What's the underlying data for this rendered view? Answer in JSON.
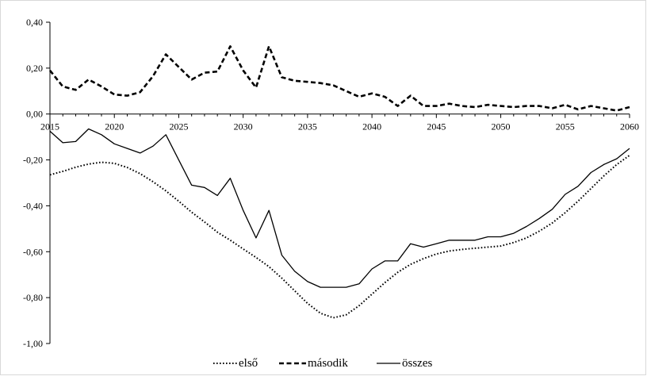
{
  "chart_data": {
    "type": "line",
    "title": "",
    "xlabel": "",
    "ylabel": "",
    "xlim": [
      2015,
      2060
    ],
    "ylim": [
      -1.0,
      0.4
    ],
    "grid": false,
    "legend_position": "bottom",
    "x": [
      2015,
      2016,
      2017,
      2018,
      2019,
      2020,
      2021,
      2022,
      2023,
      2024,
      2025,
      2026,
      2027,
      2028,
      2029,
      2030,
      2031,
      2032,
      2033,
      2034,
      2035,
      2036,
      2037,
      2038,
      2039,
      2040,
      2041,
      2042,
      2043,
      2044,
      2045,
      2046,
      2047,
      2048,
      2049,
      2050,
      2051,
      2052,
      2053,
      2054,
      2055,
      2056,
      2057,
      2058,
      2059,
      2060
    ],
    "x_ticks": [
      "2015",
      "2020",
      "2025",
      "2030",
      "2035",
      "2040",
      "2045",
      "2050",
      "2055",
      "2060"
    ],
    "y_ticks": [
      "0,40",
      "0,20",
      "0,00",
      "-0,20",
      "-0,40",
      "-0,60",
      "-0,80",
      "-1,00"
    ],
    "y_tick_values": [
      0.4,
      0.2,
      0.0,
      -0.2,
      -0.4,
      -0.6,
      -0.8,
      -1.0
    ],
    "series": [
      {
        "name": "első",
        "style": "dotted",
        "values": [
          -0.265,
          -0.25,
          -0.232,
          -0.218,
          -0.21,
          -0.215,
          -0.233,
          -0.26,
          -0.295,
          -0.335,
          -0.38,
          -0.428,
          -0.47,
          -0.515,
          -0.55,
          -0.588,
          -0.625,
          -0.665,
          -0.715,
          -0.77,
          -0.825,
          -0.868,
          -0.888,
          -0.875,
          -0.835,
          -0.785,
          -0.735,
          -0.69,
          -0.655,
          -0.63,
          -0.61,
          -0.597,
          -0.59,
          -0.585,
          -0.58,
          -0.575,
          -0.56,
          -0.54,
          -0.51,
          -0.475,
          -0.43,
          -0.38,
          -0.325,
          -0.27,
          -0.22,
          -0.18
        ]
      },
      {
        "name": "második",
        "style": "dashed",
        "values": [
          0.19,
          0.12,
          0.105,
          0.15,
          0.12,
          0.085,
          0.08,
          0.095,
          0.165,
          0.26,
          0.205,
          0.15,
          0.18,
          0.185,
          0.295,
          0.19,
          0.115,
          0.295,
          0.16,
          0.145,
          0.14,
          0.135,
          0.125,
          0.1,
          0.075,
          0.09,
          0.075,
          0.035,
          0.08,
          0.035,
          0.035,
          0.045,
          0.035,
          0.03,
          0.04,
          0.035,
          0.03,
          0.035,
          0.035,
          0.025,
          0.04,
          0.02,
          0.035,
          0.025,
          0.015,
          0.03
        ]
      },
      {
        "name": "összes",
        "style": "solid",
        "values": [
          -0.075,
          -0.125,
          -0.12,
          -0.065,
          -0.09,
          -0.13,
          -0.15,
          -0.17,
          -0.14,
          -0.09,
          -0.2,
          -0.31,
          -0.32,
          -0.355,
          -0.28,
          -0.42,
          -0.54,
          -0.42,
          -0.615,
          -0.685,
          -0.73,
          -0.755,
          -0.755,
          -0.755,
          -0.74,
          -0.675,
          -0.64,
          -0.64,
          -0.565,
          -0.58,
          -0.565,
          -0.55,
          -0.55,
          -0.55,
          -0.535,
          -0.535,
          -0.52,
          -0.49,
          -0.455,
          -0.415,
          -0.35,
          -0.315,
          -0.255,
          -0.22,
          -0.195,
          -0.15
        ]
      }
    ]
  }
}
